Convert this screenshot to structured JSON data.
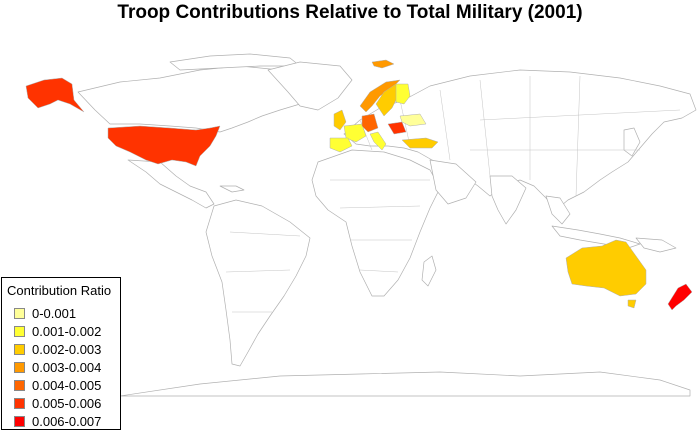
{
  "title": "Troop Contributions Relative to Total Military (2001)",
  "legend": {
    "title": "Contribution Ratio",
    "items": [
      {
        "label": "0-0.001",
        "color": "#ffff99"
      },
      {
        "label": "0.001-0.002",
        "color": "#ffff33"
      },
      {
        "label": "0.002-0.003",
        "color": "#ffcc00"
      },
      {
        "label": "0.003-0.004",
        "color": "#ff9900"
      },
      {
        "label": "0.004-0.005",
        "color": "#ff6600"
      },
      {
        "label": "0.005-0.006",
        "color": "#ff3300"
      },
      {
        "label": "0.006-0.007",
        "color": "#ff0000"
      }
    ]
  },
  "map_style": {
    "land_fill": "#ffffff",
    "border_color": "#b0b0b0",
    "background": "#ffffff"
  },
  "highlighted_regions": [
    {
      "name": "United States",
      "class": "0.005-0.006",
      "color": "#ff3300"
    },
    {
      "name": "Alaska",
      "class": "0.005-0.006",
      "color": "#ff3300"
    },
    {
      "name": "Australia",
      "class": "0.002-0.003",
      "color": "#ffcc00"
    },
    {
      "name": "New Zealand",
      "class": "0.006-0.007",
      "color": "#ff0000"
    },
    {
      "name": "Norway",
      "class": "0.003-0.004",
      "color": "#ff9900"
    },
    {
      "name": "Sweden",
      "class": "0.002-0.003",
      "color": "#ffcc00"
    },
    {
      "name": "Finland",
      "class": "0.001-0.002",
      "color": "#ffff33"
    },
    {
      "name": "Svalbard",
      "class": "0.003-0.004",
      "color": "#ff9900"
    },
    {
      "name": "United Kingdom",
      "class": "0.002-0.003",
      "color": "#ffcc00"
    },
    {
      "name": "France",
      "class": "0.001-0.002",
      "color": "#ffff33"
    },
    {
      "name": "Spain",
      "class": "0.001-0.002",
      "color": "#ffff33"
    },
    {
      "name": "Germany",
      "class": "0.004-0.005",
      "color": "#ff6600"
    },
    {
      "name": "Italy",
      "class": "0.001-0.002",
      "color": "#ffff33"
    },
    {
      "name": "Romania",
      "class": "0.005-0.006",
      "color": "#ff3300"
    },
    {
      "name": "Ukraine",
      "class": "0-0.001",
      "color": "#ffff99"
    },
    {
      "name": "Turkey",
      "class": "0.002-0.003",
      "color": "#ffcc00"
    }
  ]
}
